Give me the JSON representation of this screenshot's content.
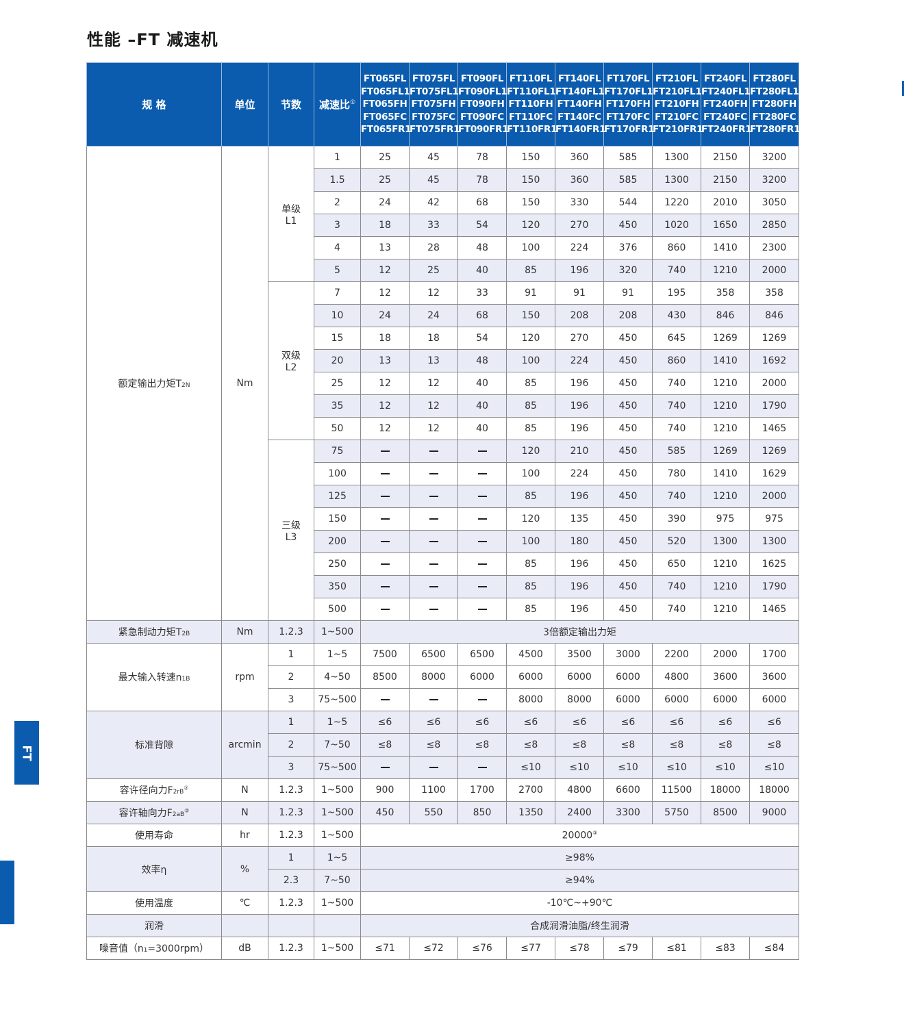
{
  "title": "性能 –FT 减速机",
  "side_tab": "FT",
  "colors": {
    "header_bg": "#0b5cae",
    "shaded_row": "#e9ebf6"
  },
  "header": {
    "spec": "规 格",
    "unit": "单位",
    "stages": "节数",
    "ratio": "减速比",
    "ratio_note": "①",
    "models": [
      [
        "FT065FL",
        "FT065FL1",
        "FT065FH",
        "FT065FC",
        "FT065FR1"
      ],
      [
        "FT075FL",
        "FT075FL1",
        "FT075FH",
        "FT075FC",
        "FT075FR1"
      ],
      [
        "FT090FL",
        "FT090FL1",
        "FT090FH",
        "FT090FC",
        "FT090FR1"
      ],
      [
        "FT110FL",
        "FT110FL1",
        "FT110FH",
        "FT110FC",
        "FT110FR1"
      ],
      [
        "FT140FL",
        "FT140FL1",
        "FT140FH",
        "FT140FC",
        "FT140FR1"
      ],
      [
        "FT170FL",
        "FT170FL1",
        "FT170FH",
        "FT170FC",
        "FT170FR1"
      ],
      [
        "FT210FL",
        "FT210FL1",
        "FT210FH",
        "FT210FC",
        "FT210FR1"
      ],
      [
        "FT240FL",
        "FT240FL1",
        "FT240FH",
        "FT240FC",
        "FT240FR1"
      ],
      [
        "FT280FL",
        "FT280FL1",
        "FT280FH",
        "FT280FC",
        "FT280FR1"
      ]
    ]
  },
  "torque": {
    "label": "额定输出力矩T",
    "sub": "2N",
    "unit": "Nm",
    "stages": [
      {
        "label": "单级",
        "code": "L1",
        "rows": [
          {
            "ratio": "1",
            "values": [
              "25",
              "45",
              "78",
              "150",
              "360",
              "585",
              "1300",
              "2150",
              "3200"
            ]
          },
          {
            "ratio": "1.5",
            "values": [
              "25",
              "45",
              "78",
              "150",
              "360",
              "585",
              "1300",
              "2150",
              "3200"
            ]
          },
          {
            "ratio": "2",
            "values": [
              "24",
              "42",
              "68",
              "150",
              "330",
              "544",
              "1220",
              "2010",
              "3050"
            ]
          },
          {
            "ratio": "3",
            "values": [
              "18",
              "33",
              "54",
              "120",
              "270",
              "450",
              "1020",
              "1650",
              "2850"
            ]
          },
          {
            "ratio": "4",
            "values": [
              "13",
              "28",
              "48",
              "100",
              "224",
              "376",
              "860",
              "1410",
              "2300"
            ]
          },
          {
            "ratio": "5",
            "values": [
              "12",
              "25",
              "40",
              "85",
              "196",
              "320",
              "740",
              "1210",
              "2000"
            ]
          }
        ]
      },
      {
        "label": "双级",
        "code": "L2",
        "rows": [
          {
            "ratio": "7",
            "values": [
              "12",
              "12",
              "33",
              "91",
              "91",
              "91",
              "195",
              "358",
              "358"
            ]
          },
          {
            "ratio": "10",
            "values": [
              "24",
              "24",
              "68",
              "150",
              "208",
              "208",
              "430",
              "846",
              "846"
            ]
          },
          {
            "ratio": "15",
            "values": [
              "18",
              "18",
              "54",
              "120",
              "270",
              "450",
              "645",
              "1269",
              "1269"
            ]
          },
          {
            "ratio": "20",
            "values": [
              "13",
              "13",
              "48",
              "100",
              "224",
              "450",
              "860",
              "1410",
              "1692"
            ]
          },
          {
            "ratio": "25",
            "values": [
              "12",
              "12",
              "40",
              "85",
              "196",
              "450",
              "740",
              "1210",
              "2000"
            ]
          },
          {
            "ratio": "35",
            "values": [
              "12",
              "12",
              "40",
              "85",
              "196",
              "450",
              "740",
              "1210",
              "1790"
            ]
          },
          {
            "ratio": "50",
            "values": [
              "12",
              "12",
              "40",
              "85",
              "196",
              "450",
              "740",
              "1210",
              "1465"
            ]
          }
        ]
      },
      {
        "label": "三级",
        "code": "L3",
        "rows": [
          {
            "ratio": "75",
            "values": [
              "—",
              "—",
              "—",
              "120",
              "210",
              "450",
              "585",
              "1269",
              "1269"
            ]
          },
          {
            "ratio": "100",
            "values": [
              "—",
              "—",
              "—",
              "100",
              "224",
              "450",
              "780",
              "1410",
              "1629"
            ]
          },
          {
            "ratio": "125",
            "values": [
              "—",
              "—",
              "—",
              "85",
              "196",
              "450",
              "740",
              "1210",
              "2000"
            ]
          },
          {
            "ratio": "150",
            "values": [
              "—",
              "—",
              "—",
              "120",
              "135",
              "450",
              "390",
              "975",
              "975"
            ]
          },
          {
            "ratio": "200",
            "values": [
              "—",
              "—",
              "—",
              "100",
              "180",
              "450",
              "520",
              "1300",
              "1300"
            ]
          },
          {
            "ratio": "250",
            "values": [
              "—",
              "—",
              "—",
              "85",
              "196",
              "450",
              "650",
              "1210",
              "1625"
            ]
          },
          {
            "ratio": "350",
            "values": [
              "—",
              "—",
              "—",
              "85",
              "196",
              "450",
              "740",
              "1210",
              "1790"
            ]
          },
          {
            "ratio": "500",
            "values": [
              "—",
              "—",
              "—",
              "85",
              "196",
              "450",
              "740",
              "1210",
              "1465"
            ]
          }
        ]
      }
    ]
  },
  "sections": [
    {
      "label": "紧急制动力矩T",
      "sub": "2B",
      "unit": "Nm",
      "rows": [
        {
          "stage": "1.2.3",
          "ratio": "1~500",
          "span": "3倍额定输出力矩"
        }
      ]
    },
    {
      "label": "最大输入转速n",
      "sub": "1B",
      "unit": "rpm",
      "rows": [
        {
          "stage": "1",
          "ratio": "1~5",
          "values": [
            "7500",
            "6500",
            "6500",
            "4500",
            "3500",
            "3000",
            "2200",
            "2000",
            "1700"
          ]
        },
        {
          "stage": "2",
          "ratio": "4~50",
          "values": [
            "8500",
            "8000",
            "6000",
            "6000",
            "6000",
            "6000",
            "4800",
            "3600",
            "3600"
          ]
        },
        {
          "stage": "3",
          "ratio": "75~500",
          "values": [
            "—",
            "—",
            "—",
            "8000",
            "8000",
            "6000",
            "6000",
            "6000",
            "6000"
          ]
        }
      ]
    },
    {
      "label": "标准背隙",
      "unit": "arcmin",
      "rows": [
        {
          "stage": "1",
          "ratio": "1~5",
          "values": [
            "≤6",
            "≤6",
            "≤6",
            "≤6",
            "≤6",
            "≤6",
            "≤6",
            "≤6",
            "≤6"
          ]
        },
        {
          "stage": "2",
          "ratio": "7~50",
          "values": [
            "≤8",
            "≤8",
            "≤8",
            "≤8",
            "≤8",
            "≤8",
            "≤8",
            "≤8",
            "≤8"
          ]
        },
        {
          "stage": "3",
          "ratio": "75~500",
          "values": [
            "—",
            "—",
            "—",
            "≤10",
            "≤10",
            "≤10",
            "≤10",
            "≤10",
            "≤10"
          ]
        }
      ]
    },
    {
      "label": "容许径向力F",
      "sub": "2rB",
      "note": "②",
      "unit": "N",
      "rows": [
        {
          "stage": "1.2.3",
          "ratio": "1~500",
          "values": [
            "900",
            "1100",
            "1700",
            "2700",
            "4800",
            "6600",
            "11500",
            "18000",
            "18000"
          ]
        }
      ]
    },
    {
      "label": "容许轴向力F",
      "sub": "2aB",
      "note": "②",
      "unit": "N",
      "rows": [
        {
          "stage": "1.2.3",
          "ratio": "1~500",
          "values": [
            "450",
            "550",
            "850",
            "1350",
            "2400",
            "3300",
            "5750",
            "8500",
            "9000"
          ]
        }
      ]
    },
    {
      "label": "使用寿命",
      "unit": "hr",
      "rows": [
        {
          "stage": "1.2.3",
          "ratio": "1~500",
          "span": "20000",
          "span_note": "③"
        }
      ]
    },
    {
      "label": "效率η",
      "unit": "%",
      "rows": [
        {
          "stage": "1",
          "ratio": "1~5",
          "span": "≥98%"
        },
        {
          "stage": "2.3",
          "ratio": "7~50",
          "span": "≥94%"
        }
      ]
    },
    {
      "label": "使用温度",
      "unit": "℃",
      "rows": [
        {
          "stage": "1.2.3",
          "ratio": "1~500",
          "span": "-10℃~+90℃"
        }
      ]
    },
    {
      "label": "润滑",
      "unit": "",
      "rows": [
        {
          "stage": "",
          "ratio": "",
          "span": "合成润滑油脂/终生润滑"
        }
      ]
    },
    {
      "label": "噪音值（n₁=3000rpm）",
      "unit": "dB",
      "rows": [
        {
          "stage": "1.2.3",
          "ratio": "1~500",
          "values": [
            "≤71",
            "≤72",
            "≤76",
            "≤77",
            "≤78",
            "≤79",
            "≤81",
            "≤83",
            "≤84"
          ]
        }
      ]
    }
  ]
}
